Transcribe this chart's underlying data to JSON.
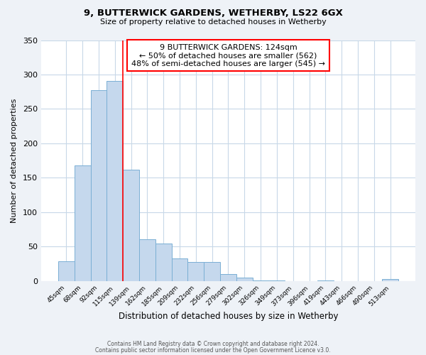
{
  "title": "9, BUTTERWICK GARDENS, WETHERBY, LS22 6GX",
  "subtitle": "Size of property relative to detached houses in Wetherby",
  "xlabel": "Distribution of detached houses by size in Wetherby",
  "ylabel": "Number of detached properties",
  "footer_line1": "Contains HM Land Registry data © Crown copyright and database right 2024.",
  "footer_line2": "Contains public sector information licensed under the Open Government Licence v3.0.",
  "bin_labels": [
    "45sqm",
    "68sqm",
    "92sqm",
    "115sqm",
    "139sqm",
    "162sqm",
    "185sqm",
    "209sqm",
    "232sqm",
    "256sqm",
    "279sqm",
    "302sqm",
    "326sqm",
    "349sqm",
    "373sqm",
    "396sqm",
    "419sqm",
    "443sqm",
    "466sqm",
    "490sqm",
    "513sqm"
  ],
  "bar_heights": [
    29,
    168,
    277,
    291,
    162,
    60,
    54,
    33,
    27,
    27,
    10,
    5,
    1,
    1,
    0,
    0,
    1,
    0,
    0,
    0,
    3
  ],
  "bar_color": "#c5d8ed",
  "bar_edge_color": "#7aafd4",
  "red_line_x": 3.5,
  "annotation_title": "9 BUTTERWICK GARDENS: 124sqm",
  "annotation_line1": "← 50% of detached houses are smaller (562)",
  "annotation_line2": "48% of semi-detached houses are larger (545) →",
  "ylim": [
    0,
    350
  ],
  "yticks": [
    0,
    50,
    100,
    150,
    200,
    250,
    300,
    350
  ],
  "background_color": "#eef2f7",
  "plot_bg_color": "#ffffff",
  "grid_color": "#c8d8e8"
}
